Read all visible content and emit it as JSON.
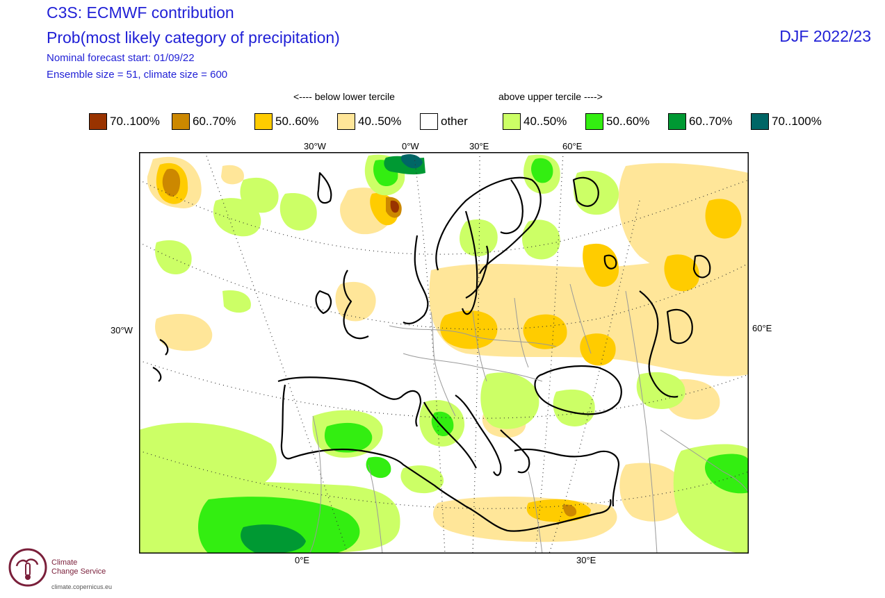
{
  "header": {
    "title": "C3S: ECMWF contribution",
    "subtitle": "Prob(most likely category of precipitation)",
    "forecast_start": "Nominal forecast start: 01/09/22",
    "ensemble": "Ensemble size = 51, climate size = 600",
    "season": "DJF 2022/23"
  },
  "legend": {
    "below_label": "<---- below lower tercile",
    "above_label": "above upper tercile ---->",
    "items": [
      {
        "label": "70..100%",
        "color": "#993300"
      },
      {
        "label": "60..70%",
        "color": "#cc8800"
      },
      {
        "label": "50..60%",
        "color": "#ffcc00"
      },
      {
        "label": "40..50%",
        "color": "#ffe699"
      },
      {
        "label": "other",
        "color": "#ffffff"
      },
      {
        "label": "40..50%",
        "color": "#ccff66"
      },
      {
        "label": "50..60%",
        "color": "#33ee11"
      },
      {
        "label": "60..70%",
        "color": "#009933"
      },
      {
        "label": "70..100%",
        "color": "#006666"
      }
    ]
  },
  "axes": {
    "top": [
      "30°W",
      "0°W",
      "30°E",
      "60°E"
    ],
    "left": "30°W",
    "right": "60°E",
    "bottom": [
      "0°E",
      "30°E"
    ]
  },
  "logo": {
    "name_line1": "Climate",
    "name_line2": "Change Service",
    "url": "climate.copernicus.eu"
  }
}
